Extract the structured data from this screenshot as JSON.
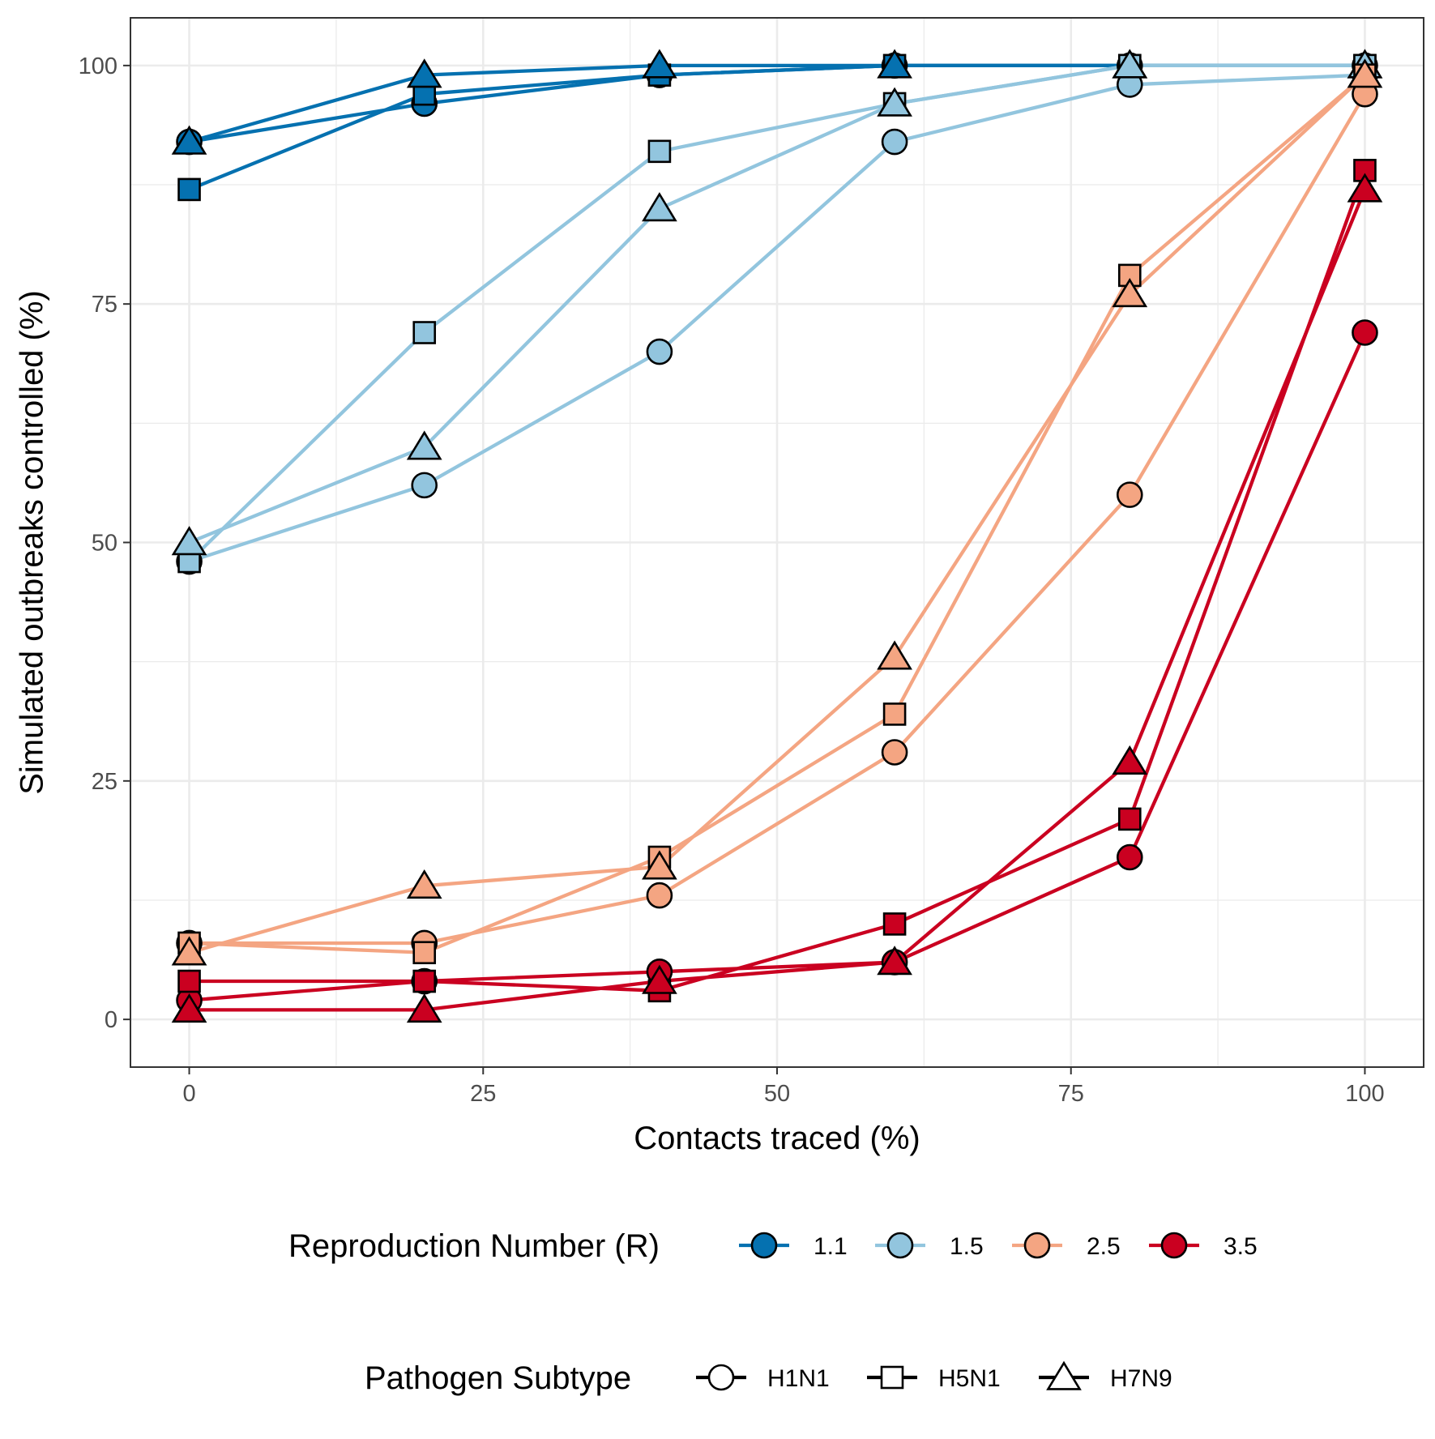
{
  "chart_data": {
    "type": "line",
    "xlabel": "Contacts traced (%)",
    "ylabel": "Simulated outbreaks controlled (%)",
    "xlim": [
      -5,
      105
    ],
    "ylim": [
      -5,
      105
    ],
    "x_ticks": [
      0,
      25,
      50,
      75,
      100
    ],
    "y_ticks": [
      0,
      25,
      50,
      75,
      100
    ],
    "x_tick_labels": [
      "0",
      "25",
      "50",
      "75",
      "100"
    ],
    "y_tick_labels": [
      "0",
      "25",
      "50",
      "75",
      "100"
    ],
    "grid": true,
    "legend_position": "bottom",
    "x": [
      0,
      20,
      40,
      60,
      80,
      100
    ],
    "color_legend": {
      "title": "Reproduction Number (R)",
      "entries": [
        {
          "label": "1.1",
          "color": "#0571b0"
        },
        {
          "label": "1.5",
          "color": "#92c5de"
        },
        {
          "label": "2.5",
          "color": "#f4a582"
        },
        {
          "label": "3.5",
          "color": "#ca0020"
        }
      ]
    },
    "shape_legend": {
      "title": "Pathogen Subtype",
      "entries": [
        {
          "label": "H1N1",
          "shape": "circle"
        },
        {
          "label": "H5N1",
          "shape": "square"
        },
        {
          "label": "H7N9",
          "shape": "triangle"
        }
      ]
    },
    "series": [
      {
        "r": "1.1",
        "subtype": "H1N1",
        "color": "#0571b0",
        "shape": "circle",
        "values": [
          92,
          96,
          99,
          100,
          100,
          100
        ]
      },
      {
        "r": "1.1",
        "subtype": "H5N1",
        "color": "#0571b0",
        "shape": "square",
        "values": [
          87,
          97,
          99,
          100,
          100,
          100
        ]
      },
      {
        "r": "1.1",
        "subtype": "H7N9",
        "color": "#0571b0",
        "shape": "triangle",
        "values": [
          92,
          99,
          100,
          100,
          100,
          100
        ]
      },
      {
        "r": "1.5",
        "subtype": "H1N1",
        "color": "#92c5de",
        "shape": "circle",
        "values": [
          48,
          56,
          70,
          92,
          98,
          99
        ]
      },
      {
        "r": "1.5",
        "subtype": "H5N1",
        "color": "#92c5de",
        "shape": "square",
        "values": [
          48,
          72,
          91,
          96,
          100,
          100
        ]
      },
      {
        "r": "1.5",
        "subtype": "H7N9",
        "color": "#92c5de",
        "shape": "triangle",
        "values": [
          50,
          60,
          85,
          96,
          100,
          100
        ]
      },
      {
        "r": "2.5",
        "subtype": "H1N1",
        "color": "#f4a582",
        "shape": "circle",
        "values": [
          8,
          8,
          13,
          28,
          55,
          97
        ]
      },
      {
        "r": "2.5",
        "subtype": "H5N1",
        "color": "#f4a582",
        "shape": "square",
        "values": [
          8,
          7,
          17,
          32,
          78,
          99
        ]
      },
      {
        "r": "2.5",
        "subtype": "H7N9",
        "color": "#f4a582",
        "shape": "triangle",
        "values": [
          7,
          14,
          16,
          38,
          76,
          99
        ]
      },
      {
        "r": "3.5",
        "subtype": "H1N1",
        "color": "#ca0020",
        "shape": "circle",
        "values": [
          2,
          4,
          5,
          6,
          17,
          72
        ]
      },
      {
        "r": "3.5",
        "subtype": "H5N1",
        "color": "#ca0020",
        "shape": "square",
        "values": [
          4,
          4,
          3,
          10,
          21,
          89
        ]
      },
      {
        "r": "3.5",
        "subtype": "H7N9",
        "color": "#ca0020",
        "shape": "triangle",
        "values": [
          1,
          1,
          4,
          6,
          27,
          87
        ]
      }
    ]
  }
}
